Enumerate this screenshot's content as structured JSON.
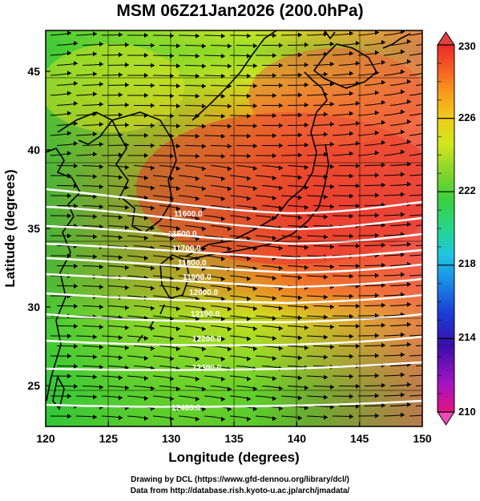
{
  "title": "MSM 06Z21Jan2026 (200.0hPa)",
  "axes": {
    "xlabel": "Longitude (degrees)",
    "ylabel": "Latitude  (degrees)",
    "x_ticks": [
      "120",
      "125",
      "130",
      "135",
      "140",
      "145",
      "150"
    ],
    "y_ticks": [
      "25",
      "30",
      "35",
      "40",
      "45"
    ],
    "x_range": [
      120,
      150
    ],
    "y_range": [
      22.4,
      47.6
    ]
  },
  "colorbar": {
    "min": 210,
    "max": 230,
    "labels": [
      "230",
      "226",
      "222",
      "218",
      "214",
      "210"
    ],
    "colors": [
      "#e0147f",
      "#a214c4",
      "#3a0ea8",
      "#1a3fd6",
      "#1a8fe8",
      "#20c6e0",
      "#26d68c",
      "#3ccf3c",
      "#8cd62a",
      "#d2e61e",
      "#f0cc18",
      "#f89a1a",
      "#f55a25",
      "#e82a2a"
    ]
  },
  "contours": {
    "values": [
      "11600.0",
      "11500.0",
      "11700.0",
      "11800.0",
      "11900.0",
      "12000.0",
      "12100.0",
      "12200.0",
      "12300.0",
      "12400.0"
    ],
    "color": "#ffffff"
  },
  "credits": {
    "line1": "Drawing by DCL (https://www.gfd-dennou.org/library/dcl/)",
    "line2": "Data from http://database.rish.kyoto-u.ac.jp/arch/jmadata/"
  }
}
